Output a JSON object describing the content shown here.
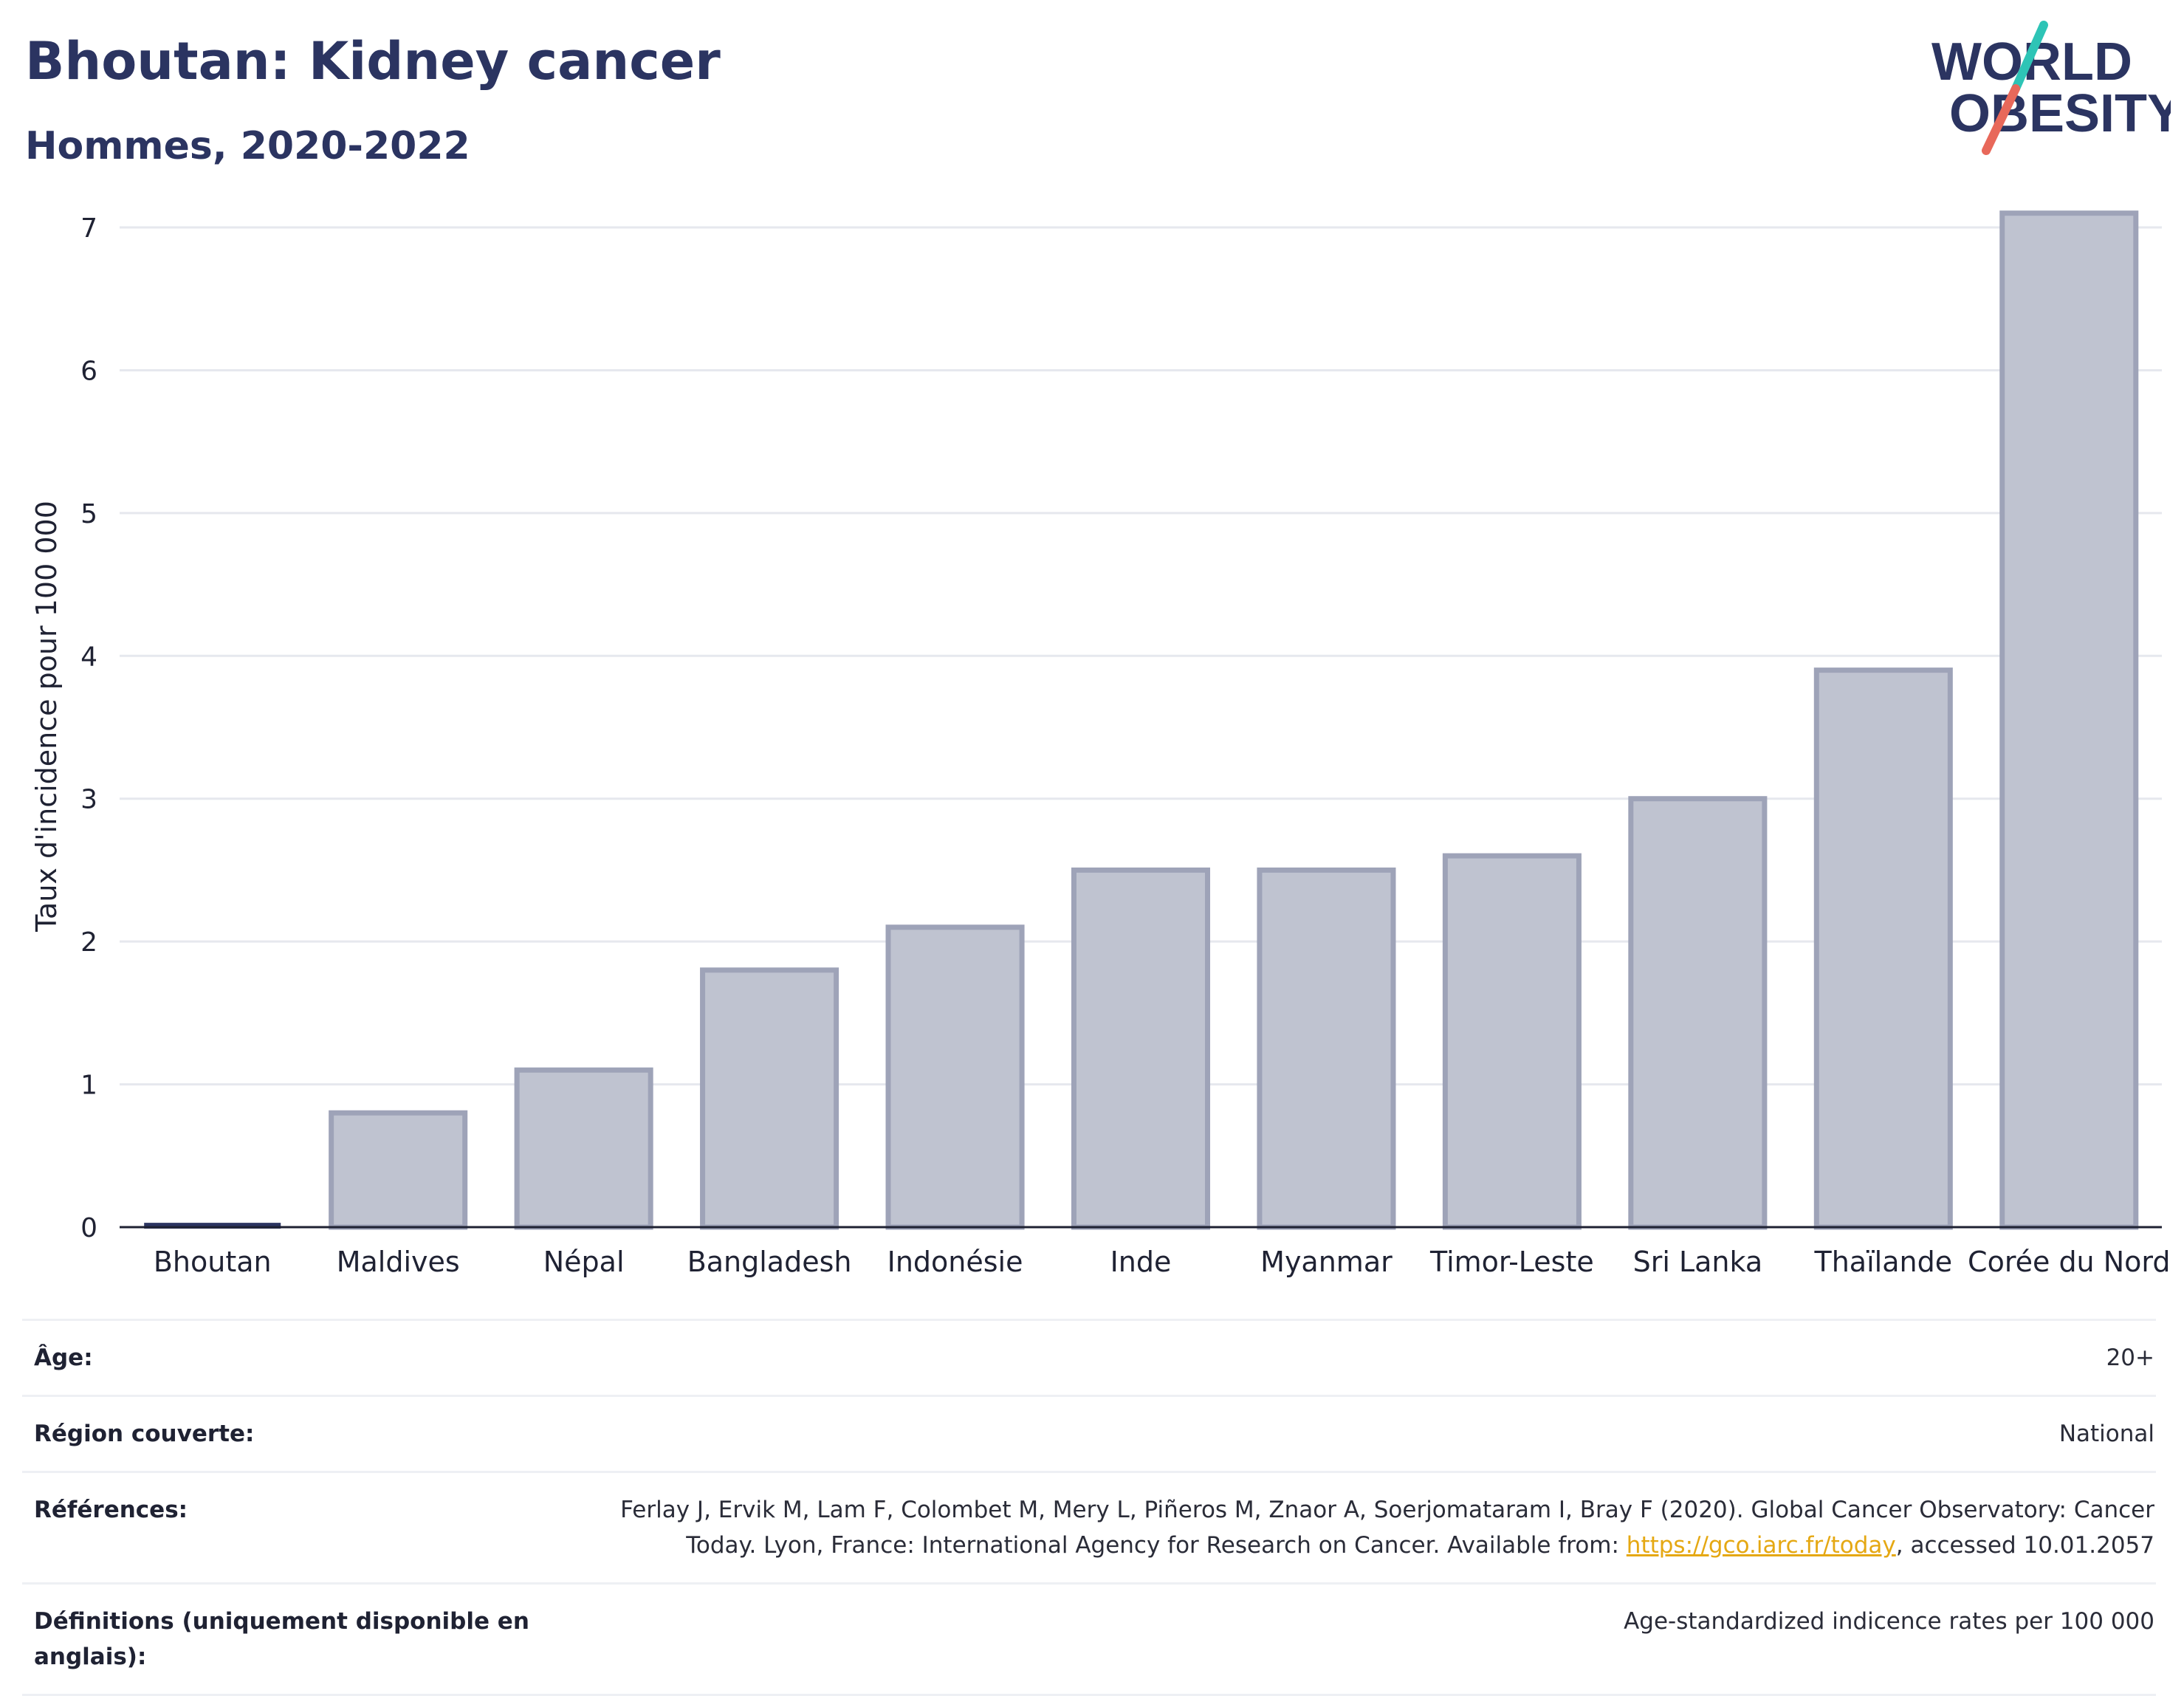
{
  "header": {
    "title": "Bhoutan: Kidney cancer",
    "subtitle": "Hommes, 2020-2022"
  },
  "logo": {
    "line1": "WORLD",
    "line2": "OBESITY",
    "accent_teal": "#2ec4b6",
    "accent_coral": "#e8685a"
  },
  "colors": {
    "bar_fill": "#bfc3d0",
    "bar_stroke": "#9ea3b8",
    "highlight": "#2b3461",
    "grid": "#e6e8ee"
  },
  "chart_data": {
    "type": "bar",
    "title": "Bhoutan: Kidney cancer",
    "ylabel": "Taux d'incidence pour 100 000",
    "xlabel": "",
    "ylim": [
      0,
      7.3
    ],
    "yticks": [
      0,
      1,
      2,
      3,
      4,
      5,
      6,
      7
    ],
    "categories": [
      "Bhoutan",
      "Maldives",
      "Népal",
      "Bangladesh",
      "Indonésie",
      "Inde",
      "Myanmar",
      "Timor-Leste",
      "Sri Lanka",
      "Thaïlande",
      "Corée du Nord"
    ],
    "values": [
      0.02,
      0.8,
      1.1,
      1.8,
      2.1,
      2.5,
      2.5,
      2.6,
      3.0,
      3.9,
      7.1
    ],
    "highlight_category": "Bhoutan",
    "grid": true
  },
  "meta": {
    "rows": [
      {
        "key": "Âge:",
        "value": "20+"
      },
      {
        "key": "Région couverte:",
        "value": "National"
      },
      {
        "key": "Références:",
        "value_prefix": "Ferlay J, Ervik M, Lam F, Colombet M, Mery L, Piñeros M, Znaor A, Soerjomataram I, Bray F (2020). Global Cancer Observatory: Cancer Today. Lyon, France: International Agency for Research on Cancer. Available from: ",
        "link": "https://gco.iarc.fr/today",
        "value_suffix": ", accessed 10.01.2057"
      },
      {
        "key": "Définitions (uniquement disponible en anglais):",
        "value": "Age-standardized indicence rates per 100 000"
      }
    ]
  }
}
